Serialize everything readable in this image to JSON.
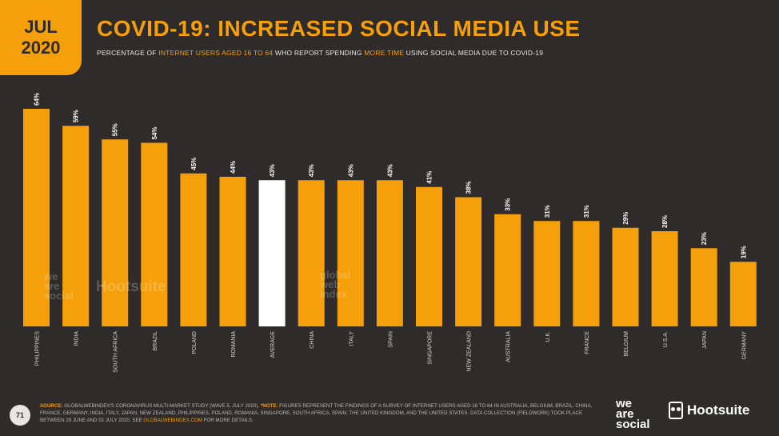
{
  "badge": {
    "month": "JUL",
    "year": "2020"
  },
  "header": {
    "title": "COVID-19: INCREASED SOCIAL MEDIA USE",
    "subtitle_parts": [
      {
        "text": "PERCENTAGE OF ",
        "hl": false
      },
      {
        "text": "INTERNET USERS AGED 16 TO 64",
        "hl": true
      },
      {
        "text": " WHO REPORT SPENDING ",
        "hl": false
      },
      {
        "text": "MORE TIME",
        "hl": true
      },
      {
        "text": " USING SOCIAL MEDIA DUE TO COVID-19",
        "hl": false
      }
    ]
  },
  "colors": {
    "bar": "#f59f0b",
    "highlight": "#ffffff",
    "background": "#2f2b2b"
  },
  "chart_data": {
    "type": "bar",
    "title": "COVID-19: INCREASED SOCIAL MEDIA USE",
    "xlabel": "",
    "ylabel": "",
    "ylim": [
      0,
      64
    ],
    "value_suffix": "%",
    "highlight_category": "AVERAGE",
    "categories": [
      "PHILIPPINES",
      "INDIA",
      "SOUTH AFRICA",
      "BRAZIL",
      "POLAND",
      "ROMANIA",
      "AVERAGE",
      "CHINA",
      "ITALY",
      "SPAIN",
      "SINGAPORE",
      "NEW ZEALAND",
      "AUSTRALIA",
      "U.K.",
      "FRANCE",
      "BELGIUM",
      "U.S.A.",
      "JAPAN",
      "GERMANY"
    ],
    "values": [
      64,
      59,
      55,
      54,
      45,
      44,
      43,
      43,
      43,
      43,
      41,
      38,
      33,
      31,
      31,
      29,
      28,
      23,
      19
    ]
  },
  "watermarks": {
    "wearesocial": [
      "we",
      "are",
      "social"
    ],
    "hootsuite": "Hootsuite",
    "gwi": [
      "global",
      "web",
      "index"
    ]
  },
  "footer": {
    "page_number": "71",
    "source_label": "SOURCE:",
    "source_text": " GLOBALWEBINDEX'S CORONAVIRUS MULTI-MARKET STUDY (WAVE 5, JULY 2020). ",
    "note_label": "*NOTE:",
    "note_text": " FIGURES REPRESENT THE FINDINGS OF A SURVEY OF INTERNET USERS AGED 16 TO 64 IN AUSTRALIA, BELGIUM, BRAZIL, CHINA, FRANCE, GERMANY, INDIA, ITALY, JAPAN, NEW ZEALAND, PHILIPPINES, POLAND, ROMANIA, SINGAPORE, SOUTH AFRICA, SPAIN, THE UNITED KINGDOM, AND THE UNITED STATES. DATA COLLECTION (FIELDWORK) TOOK PLACE BETWEEN 29 JUNE AND 02 JULY 2020. SEE ",
    "link_text": "GLOBALWEBINDEX.COM",
    "tail_text": " FOR MORE DETAILS."
  },
  "logos": {
    "wearesocial": [
      "we",
      "are",
      "social"
    ],
    "hootsuite": "Hootsuite"
  }
}
